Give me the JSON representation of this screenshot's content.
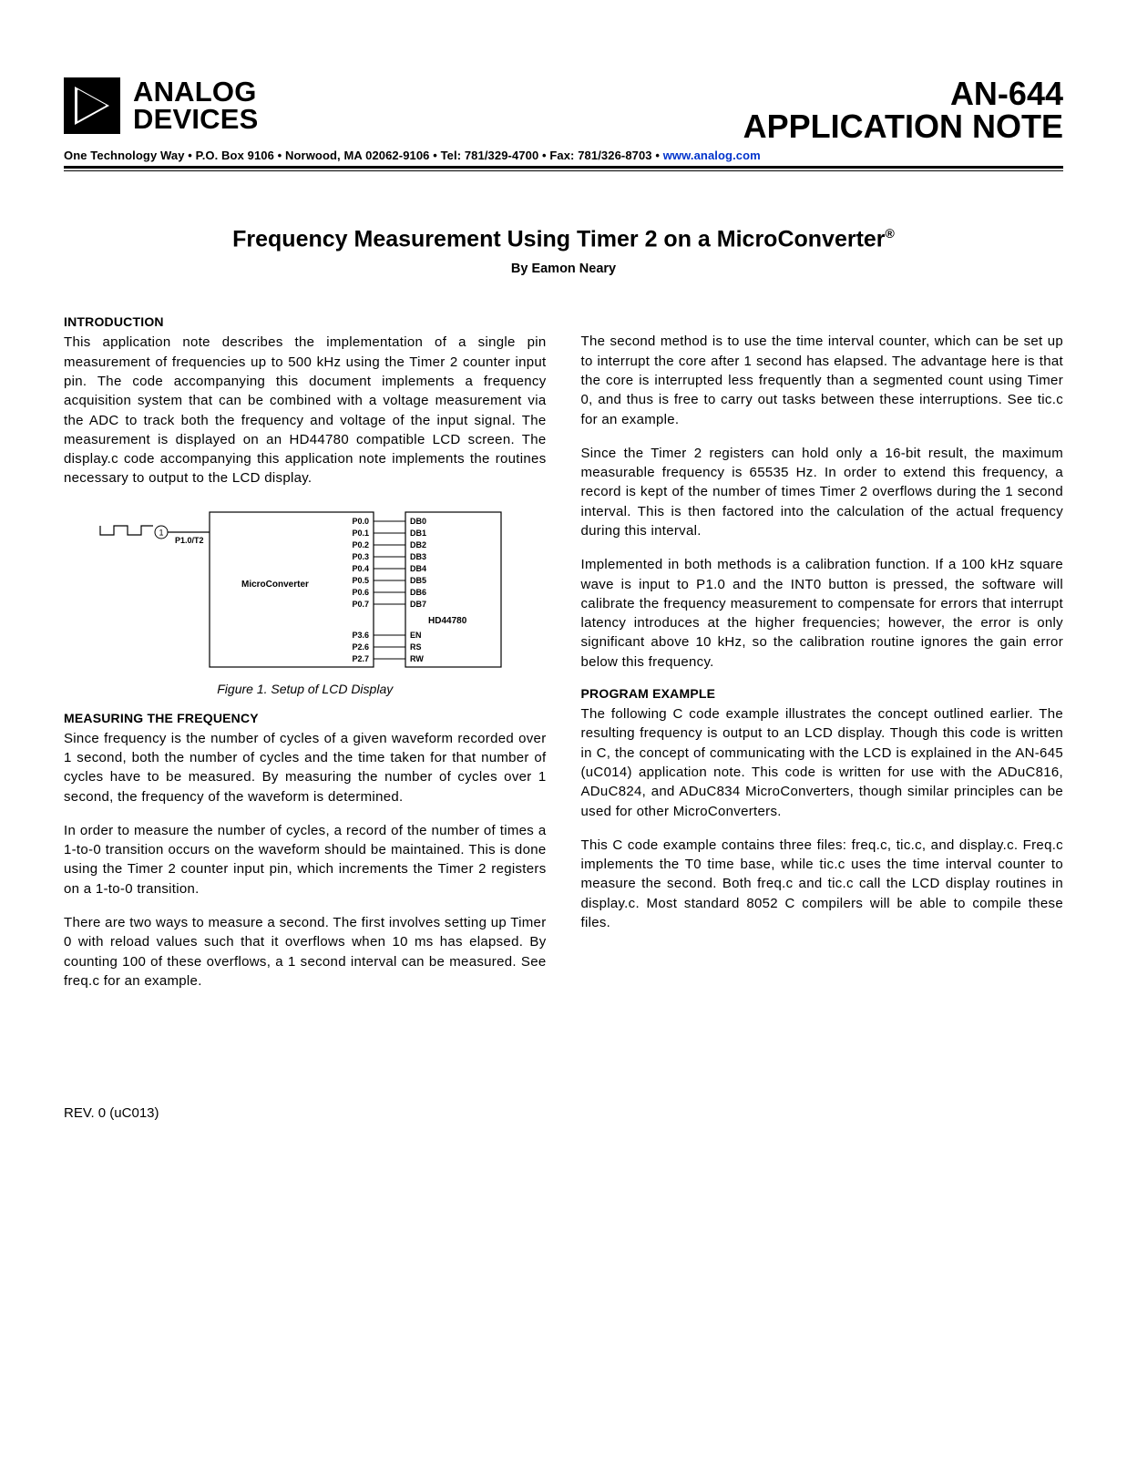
{
  "header": {
    "logo_line1": "ANALOG",
    "logo_line2": "DEVICES",
    "doc_code": "AN-644",
    "doc_type": "APPLICATION NOTE",
    "contact_prefix": "One Technology Way • P.O. Box 9106 • Norwood, MA 02062-9106 • Tel: 781/329-4700 • Fax: 781/326-8703 • ",
    "contact_url": "www.analog.com"
  },
  "title_main": "Frequency Measurement Using Timer 2 on a MicroConverter",
  "byline": "By Eamon Neary",
  "left": {
    "h1": "INTRODUCTION",
    "p1": "This application note describes the implementation of a single pin measurement of frequencies up to 500 kHz using the Timer 2 counter input pin. The code accompanying this document implements a frequency acquisition system that can be combined with a voltage measurement via the ADC to track both the frequency and voltage of the input signal. The measurement is displayed on an HD44780 compatible LCD screen. The display.c code accompanying this application note implements the routines necessary to output to the LCD display.",
    "figcaption": "Figure 1.  Setup of LCD Display",
    "h2": "MEASURING THE FREQUENCY",
    "p2": "Since frequency is the number of cycles of a given waveform recorded over 1 second, both the number of cycles and the time taken for that number of cycles have to be measured. By measuring the number of cycles over 1 second, the frequency of the waveform is determined.",
    "p3": "In order to measure the number of cycles, a record of the number of times a 1-to-0 transition occurs on the waveform should be maintained. This is done using the Timer 2 counter input pin, which increments the Timer 2 registers on a 1-to-0 transition.",
    "p4": "There are two ways to measure a second. The first involves setting up Timer 0 with reload values such that it overflows when 10 ms has elapsed. By counting 100 of these overflows, a 1 second interval can be measured. See freq.c for an example."
  },
  "right": {
    "p1": "The second method is to use the time interval counter, which can be set up to interrupt the core after 1 second has elapsed. The advantage here is that the core is interrupted less frequently than a segmented count using Timer 0, and thus is free to carry out tasks between these interruptions. See tic.c for an example.",
    "p2": "Since the Timer 2 registers can hold only a 16-bit result, the maximum measurable frequency is 65535 Hz. In order to extend this frequency, a record is kept of the number of times Timer 2 overflows during the 1 second interval. This is then factored into the calculation of the actual frequency during this interval.",
    "p3": "Implemented in both methods is a calibration function. If a 100 kHz square wave is input to P1.0 and the INT0 button is pressed, the software will calibrate the frequency measurement to compensate for errors that interrupt latency introduces at the higher frequencies; however, the error is only significant above 10 kHz, so the calibration routine ignores the gain error below this frequency.",
    "h1": "PROGRAM EXAMPLE",
    "p4": "The following C code example illustrates the concept outlined earlier. The resulting frequency is output to an LCD display. Though this code is written in C, the concept of communicating with the LCD is explained in the AN-645 (uC014) application note. This code is written for use with the ADuC816, ADuC824, and ADuC834 MicroConverters, though similar principles can be used for other MicroConverters.",
    "p5": "This C code example contains three files: freq.c, tic.c, and display.c. Freq.c implements the T0 time base, while tic.c uses the time interval counter to measure the second. Both freq.c and tic.c call the LCD display routines in display.c. Most standard 8052 C compilers will be able to compile these files."
  },
  "footer": {
    "rev": "REV. 0 (uC013)"
  },
  "diagram": {
    "mc_label": "MicroConverter",
    "lcd_label": "HD44780",
    "input_pin": "P1.0/T2",
    "circle_num": "1",
    "left_pins": [
      "P0.0",
      "P0.1",
      "P0.2",
      "P0.3",
      "P0.4",
      "P0.5",
      "P0.6",
      "P0.7"
    ],
    "right_pins": [
      "DB0",
      "DB1",
      "DB2",
      "DB3",
      "DB4",
      "DB5",
      "DB6",
      "DB7"
    ],
    "ctrl_left": [
      "P3.6",
      "P2.6",
      "P2.7"
    ],
    "ctrl_right": [
      "EN",
      "RS",
      "RW"
    ],
    "colors": {
      "stroke": "#000000",
      "text": "#000000",
      "bg": "#ffffff"
    },
    "font_size_pin": 9,
    "font_size_label": 10
  }
}
